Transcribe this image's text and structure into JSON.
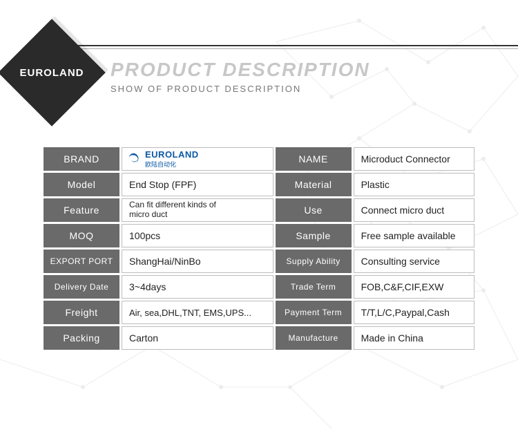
{
  "header": {
    "brand_diamond": "EUROLAND",
    "title": "PRODUCT DESCRIPTION",
    "subtitle": "SHOW OF PRODUCT DESCRIPTION"
  },
  "logo": {
    "text": "EUROLAND",
    "subtext": "欧陆自动化",
    "color": "#0a58a6"
  },
  "table": {
    "columns": [
      "label_left",
      "value_left",
      "label_right",
      "value_right"
    ],
    "label_bg": "#6a6a6a",
    "label_color": "#ffffff",
    "value_border": "#bcbcbc",
    "rows": [
      {
        "l1": "BRAND",
        "v1_is_logo": true,
        "v1": "",
        "l2": "NAME",
        "v2": "Microduct Connector"
      },
      {
        "l1": "Model",
        "v1": "End Stop (FPF)",
        "l2": "Material",
        "v2": "Plastic"
      },
      {
        "l1": "Feature",
        "v1": "Can fit different kinds of\n micro duct",
        "l2": "Use",
        "v2": "Connect micro duct",
        "v1_small": true
      },
      {
        "l1": "MOQ",
        "v1": "100pcs",
        "l2": "Sample",
        "v2": "Free sample available"
      },
      {
        "l1": "EXPORT PORT",
        "v1": "ShangHai/NinBo",
        "l2": "Supply Ability",
        "v2": "Consulting service",
        "l1_small": true,
        "l2_small": true
      },
      {
        "l1": "Delivery Date",
        "v1": "3~4days",
        "l2": "Trade Term",
        "v2": "FOB,C&F,CIF,EXW",
        "l1_small": true,
        "l2_small": true
      },
      {
        "l1": "Freight",
        "v1": "Air, sea,DHL,TNT, EMS,UPS...",
        "l2": "Payment Term",
        "v2": "T/T,L/C,Paypal,Cash",
        "l2_small": true,
        "v1_smallish": true
      },
      {
        "l1": "Packing",
        "v1": "Carton",
        "l2": "Manufacture",
        "v2": "Made in China",
        "l2_small": true
      }
    ]
  },
  "bg": {
    "line_color": "#8a8a8a"
  }
}
